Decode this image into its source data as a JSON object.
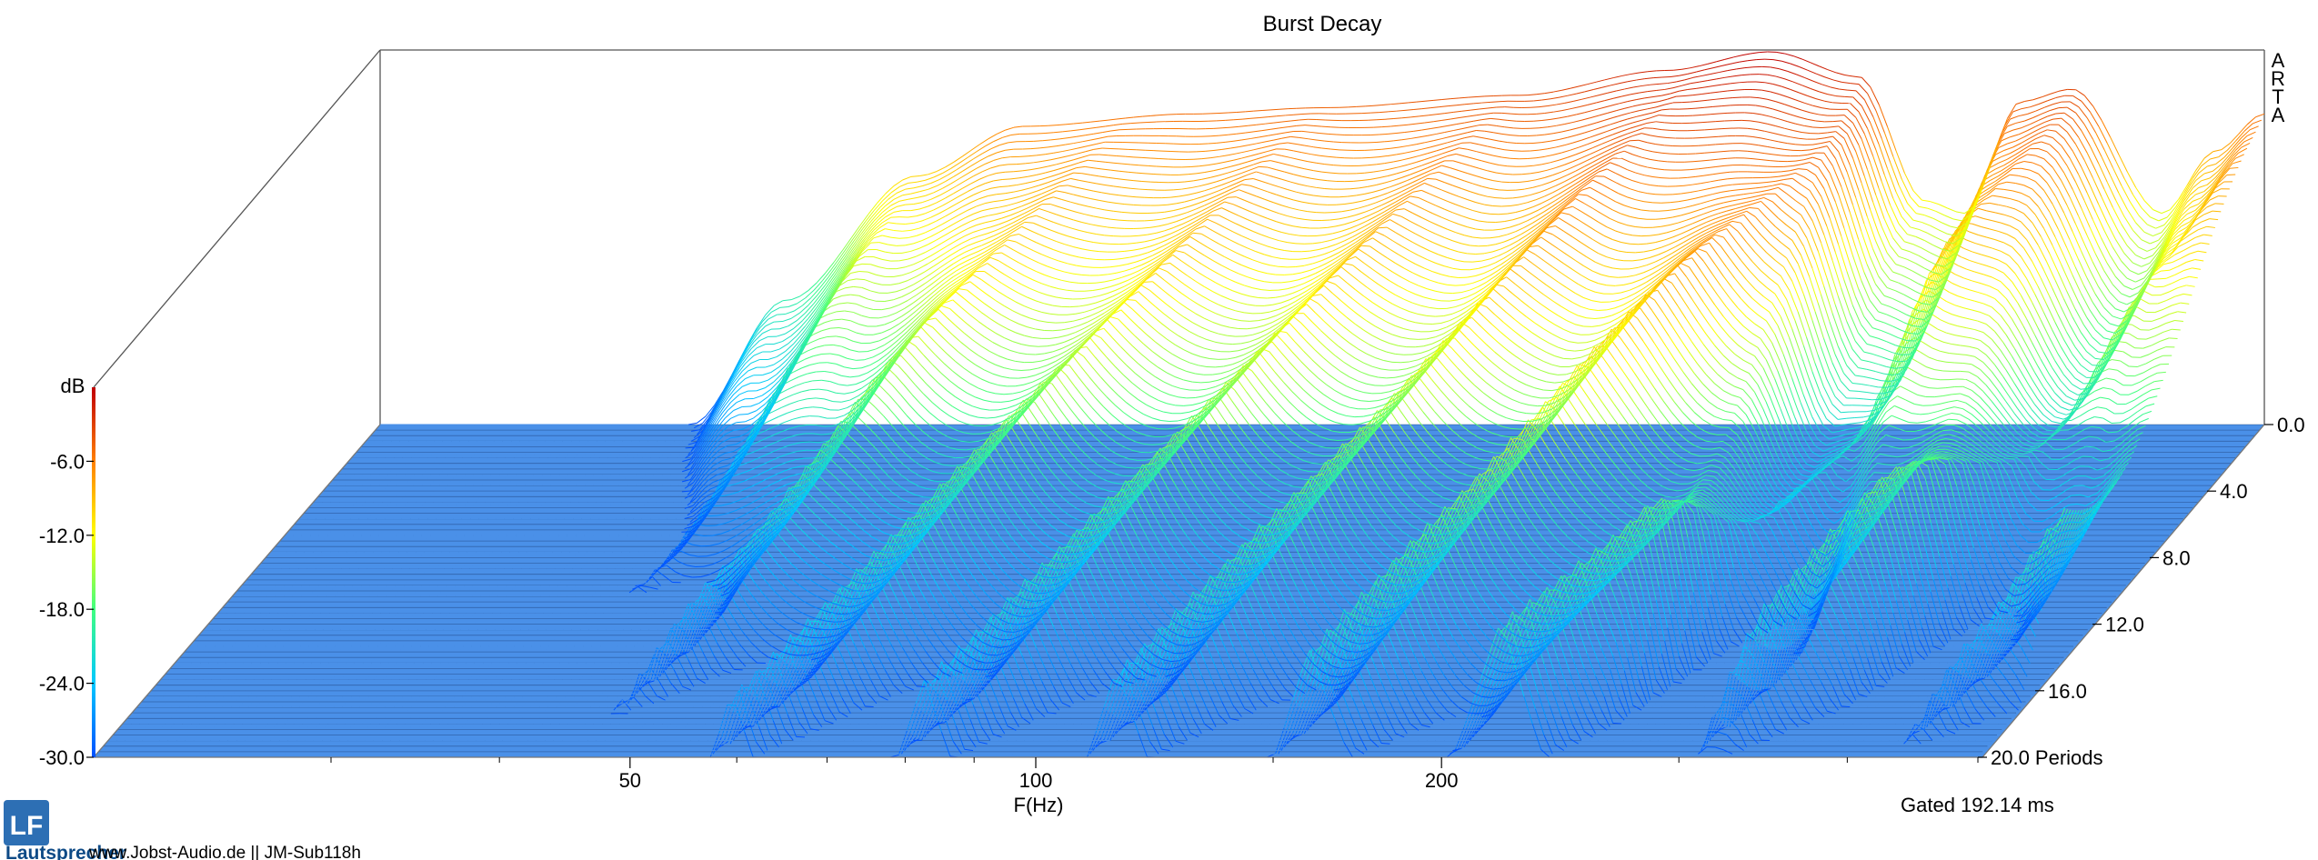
{
  "chart_data": {
    "type": "waterfall",
    "title": "Burst Decay",
    "xlabel": "F(Hz)",
    "zlabel": "dB",
    "ylabel": "Periods",
    "x_scale": "log",
    "x_range_hz": [
      20,
      500
    ],
    "x_ticks": [
      {
        "value": 50,
        "label": "50"
      },
      {
        "value": 100,
        "label": "100"
      },
      {
        "value": 200,
        "label": "200"
      }
    ],
    "z_range_db": [
      -30,
      0
    ],
    "z_ticks": [
      {
        "value": -6,
        "label": "-6.0"
      },
      {
        "value": -12,
        "label": "-12.0"
      },
      {
        "value": -18,
        "label": "-18.0"
      },
      {
        "value": -24,
        "label": "-24.0"
      },
      {
        "value": -30,
        "label": "-30.0"
      }
    ],
    "y_range_periods": [
      0,
      20
    ],
    "y_ticks": [
      {
        "value": 0,
        "label": "0.0"
      },
      {
        "value": 4,
        "label": "4.0"
      },
      {
        "value": 8,
        "label": "8.0"
      },
      {
        "value": 12,
        "label": "12.0"
      },
      {
        "value": 16,
        "label": "16.0"
      },
      {
        "value": 20,
        "label": "20.0 Periods"
      }
    ],
    "colormap": [
      "#0050ff",
      "#00c8ff",
      "#40ff80",
      "#ffff00",
      "#ff8000",
      "#c00000"
    ],
    "floor_color": "#4a90e8",
    "slice_count": 100,
    "front_response": [
      {
        "hz": 34,
        "db": -30
      },
      {
        "hz": 40,
        "db": -20
      },
      {
        "hz": 50,
        "db": -10
      },
      {
        "hz": 60,
        "db": -6
      },
      {
        "hz": 80,
        "db": -5
      },
      {
        "hz": 100,
        "db": -4.5
      },
      {
        "hz": 140,
        "db": -3.5
      },
      {
        "hz": 180,
        "db": -1.5
      },
      {
        "hz": 215,
        "db": 0
      },
      {
        "hz": 250,
        "db": -2
      },
      {
        "hz": 280,
        "db": -12
      },
      {
        "hz": 300,
        "db": -13
      },
      {
        "hz": 330,
        "db": -4
      },
      {
        "hz": 360,
        "db": -3
      },
      {
        "hz": 420,
        "db": -13
      },
      {
        "hz": 460,
        "db": -8
      },
      {
        "hz": 500,
        "db": -5
      }
    ]
  },
  "corner_label": "ARTA",
  "gate_label": "Gated 192.14 ms",
  "footer": "www.Jobst-Audio.de  ||  JM-Sub118h",
  "logo": {
    "letters": "LF",
    "word": "Lautsprecher"
  }
}
